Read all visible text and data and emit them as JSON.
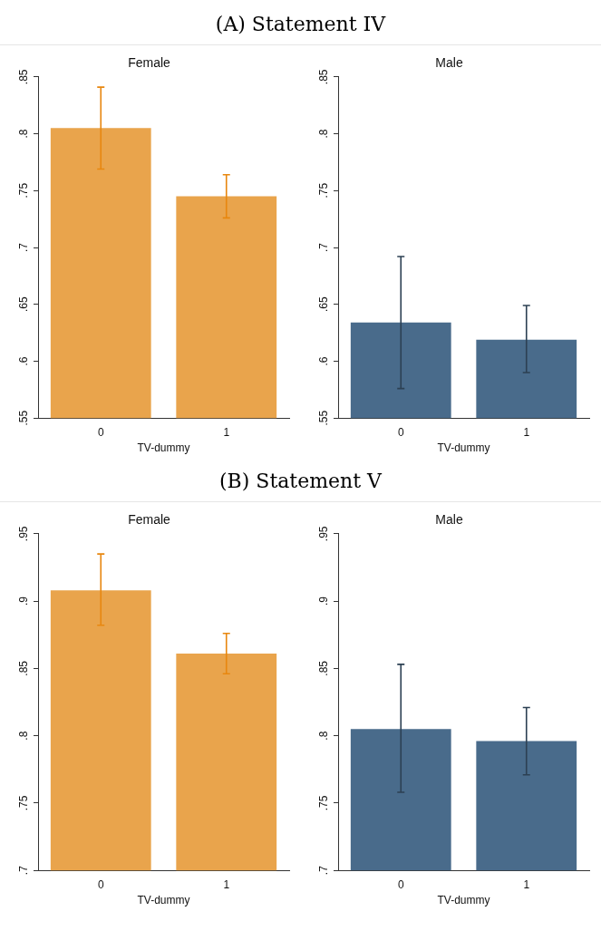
{
  "chart_data": [
    {
      "type": "bar",
      "annotations": [
        "(A) Statement IV"
      ],
      "title": "Female",
      "xlabel": "TV-dummy",
      "categories": [
        "0",
        "1"
      ],
      "series": [
        {
          "color": "#e9a44c",
          "values": [
            0.805,
            0.745
          ],
          "errors": [
            [
              0.769,
              0.841
            ],
            [
              0.726,
              0.764
            ]
          ]
        }
      ],
      "ylim": [
        0.55,
        0.85
      ],
      "yticks": [
        {
          "value": 0.55,
          "label": ".55"
        },
        {
          "value": 0.6,
          "label": ".6"
        },
        {
          "value": 0.65,
          "label": ".65"
        },
        {
          "value": 0.7,
          "label": ".7"
        },
        {
          "value": 0.75,
          "label": ".75"
        },
        {
          "value": 0.8,
          "label": ".8"
        },
        {
          "value": 0.85,
          "label": ".85"
        }
      ],
      "grid": false,
      "legend": false
    },
    {
      "type": "bar",
      "title": "Male",
      "xlabel": "TV-dummy",
      "categories": [
        "0",
        "1"
      ],
      "series": [
        {
          "color": "#496b8b",
          "values": [
            0.634,
            0.619
          ],
          "errors": [
            [
              0.576,
              0.692
            ],
            [
              0.59,
              0.649
            ]
          ]
        }
      ],
      "ylim": [
        0.55,
        0.85
      ],
      "yticks": [
        {
          "value": 0.55,
          "label": ".55"
        },
        {
          "value": 0.6,
          "label": ".6"
        },
        {
          "value": 0.65,
          "label": ".65"
        },
        {
          "value": 0.7,
          "label": ".7"
        },
        {
          "value": 0.75,
          "label": ".75"
        },
        {
          "value": 0.8,
          "label": ".8"
        },
        {
          "value": 0.85,
          "label": ".85"
        }
      ],
      "grid": false,
      "legend": false
    },
    {
      "type": "bar",
      "annotations": [
        "(B) Statement V"
      ],
      "title": "Female",
      "xlabel": "TV-dummy",
      "categories": [
        "0",
        "1"
      ],
      "series": [
        {
          "color": "#e9a44c",
          "values": [
            0.908,
            0.861
          ],
          "errors": [
            [
              0.882,
              0.935
            ],
            [
              0.846,
              0.876
            ]
          ]
        }
      ],
      "ylim": [
        0.7,
        0.95
      ],
      "yticks": [
        {
          "value": 0.7,
          "label": ".7"
        },
        {
          "value": 0.75,
          "label": ".75"
        },
        {
          "value": 0.8,
          "label": ".8"
        },
        {
          "value": 0.85,
          "label": ".85"
        },
        {
          "value": 0.9,
          "label": ".9"
        },
        {
          "value": 0.95,
          "label": ".95"
        }
      ],
      "grid": false,
      "legend": false
    },
    {
      "type": "bar",
      "title": "Male",
      "xlabel": "TV-dummy",
      "categories": [
        "0",
        "1"
      ],
      "series": [
        {
          "color": "#496b8b",
          "values": [
            0.805,
            0.796
          ],
          "errors": [
            [
              0.758,
              0.853
            ],
            [
              0.771,
              0.821
            ]
          ]
        }
      ],
      "ylim": [
        0.7,
        0.95
      ],
      "yticks": [
        {
          "value": 0.7,
          "label": ".7"
        },
        {
          "value": 0.75,
          "label": ".75"
        },
        {
          "value": 0.8,
          "label": ".8"
        },
        {
          "value": 0.85,
          "label": ".85"
        },
        {
          "value": 0.9,
          "label": ".9"
        },
        {
          "value": 0.95,
          "label": ".95"
        }
      ],
      "grid": false,
      "legend": false
    }
  ]
}
